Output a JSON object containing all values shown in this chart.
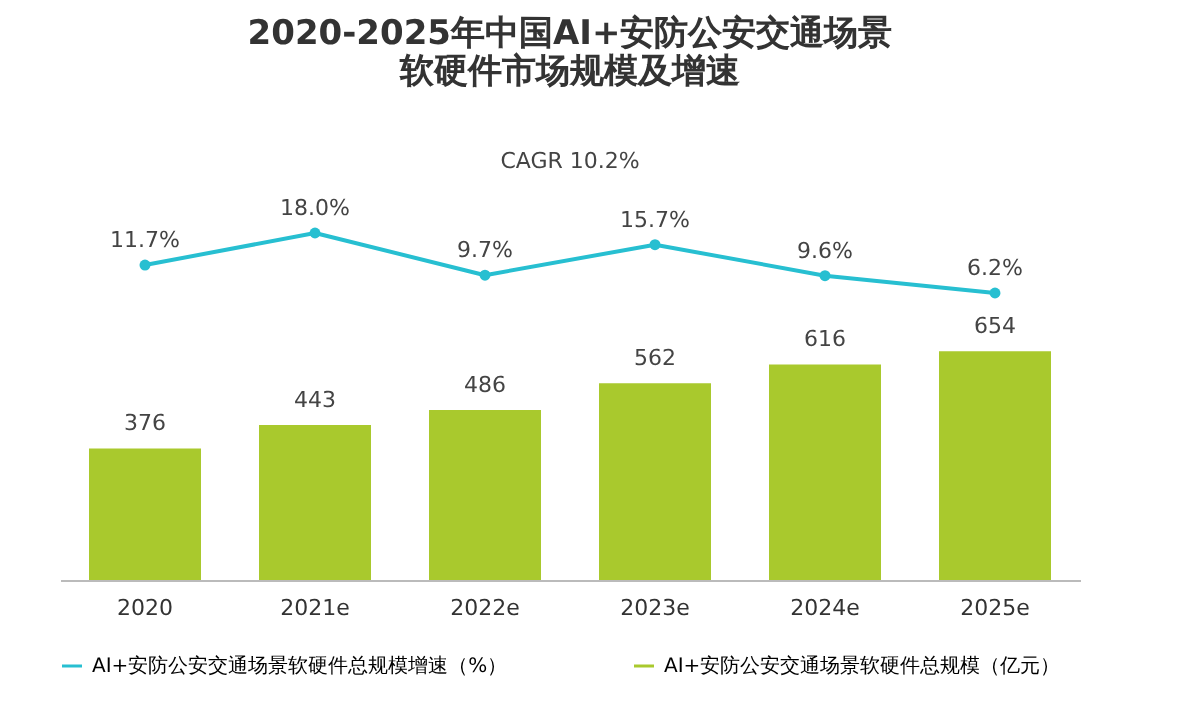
{
  "chart_data": [
    {
      "type": "line",
      "title": "2020-2025年中国AI+安防公安交通场景软硬件市场规模及增速",
      "annotations": [
        "CAGR 10.2%"
      ],
      "categories": [
        "2020",
        "2021e",
        "2022e",
        "2023e",
        "2024e",
        "2025e"
      ],
      "tick_labels": false,
      "marker": "circle",
      "series": [
        {
          "name": "AI+安防公安交通场景软硬件总规模增速（%）",
          "color": "#27bfd1",
          "values": [
            11.7,
            18.0,
            9.7,
            15.7,
            9.6,
            6.2
          ],
          "value_labels": [
            "11.7%",
            "18.0%",
            "9.7%",
            "15.7%",
            "9.6%",
            "6.2%"
          ]
        }
      ]
    },
    {
      "type": "bar",
      "categories": [
        "2020",
        "2021e",
        "2022e",
        "2023e",
        "2024e",
        "2025e"
      ],
      "tick_labels": "x",
      "data_labels": true,
      "legend": "bottom",
      "series": [
        {
          "name": "AI+安防公安交通场景软硬件总规模（亿元）",
          "color": "#a9c92d",
          "values": [
            376,
            443,
            486,
            562,
            616,
            654
          ]
        }
      ]
    }
  ]
}
